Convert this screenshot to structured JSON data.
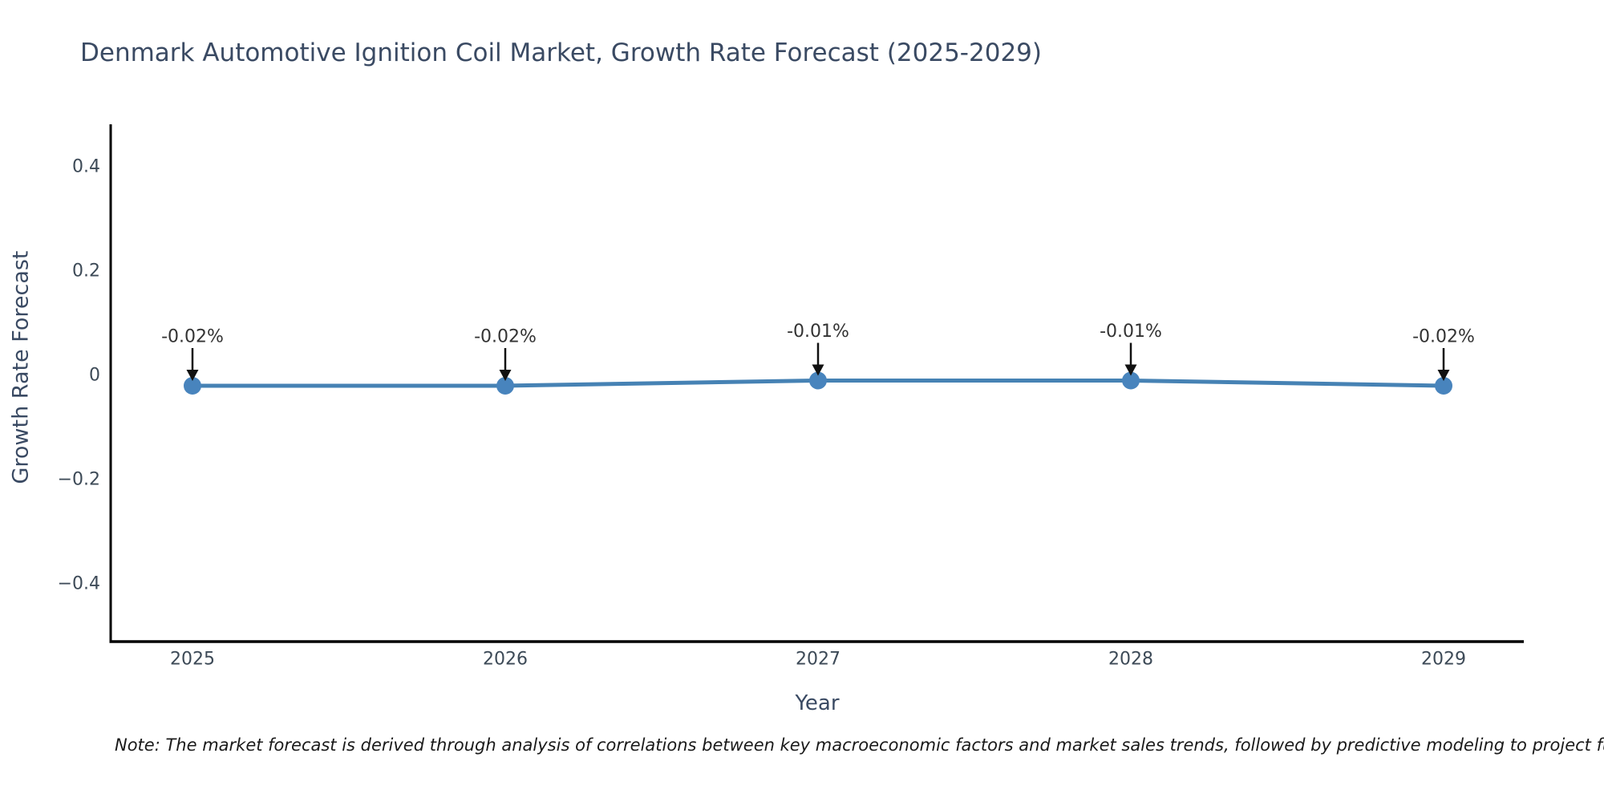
{
  "title": "Denmark Automotive Ignition Coil Market, Growth Rate Forecast (2025-2029)",
  "note": "Note: The market forecast is derived through analysis of correlations between key macroeconomic factors and market sales trends, followed by predictive modeling to project future sa",
  "chart_data": {
    "type": "line",
    "title": "Denmark Automotive Ignition Coil Market, Growth Rate Forecast (2025-2029)",
    "xlabel": "Year",
    "ylabel": "Growth Rate Forecast",
    "categories": [
      "2025",
      "2026",
      "2027",
      "2028",
      "2029"
    ],
    "series": [
      {
        "name": "Growth Rate Forecast",
        "values": [
          -0.02,
          -0.02,
          -0.01,
          -0.01,
          -0.02
        ]
      }
    ],
    "point_labels": [
      "-0.02%",
      "-0.02%",
      "-0.01%",
      "-0.01%",
      "-0.02%"
    ],
    "ytick_values": [
      0.4,
      0.2,
      0,
      -0.2,
      -0.4
    ],
    "ytick_labels": [
      "0.4",
      "0.2",
      "0",
      "−0.2",
      "−0.4"
    ],
    "ylim": [
      -0.5,
      0.48
    ],
    "grid": false,
    "legend": "none",
    "line_color": "#4682b4",
    "marker_color": "#4884bd",
    "arrow_color": "#111111",
    "axis_color": "#000000",
    "annotation_color": "#333333"
  }
}
